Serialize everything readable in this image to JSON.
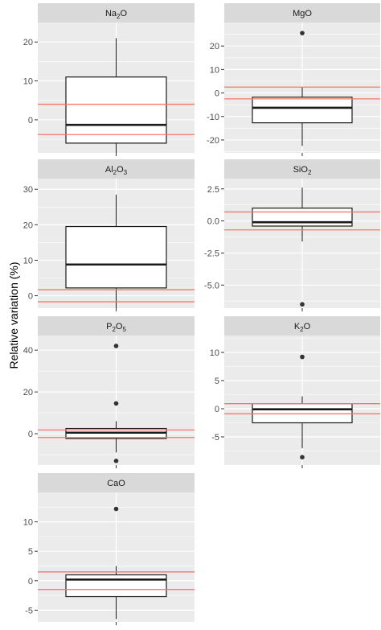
{
  "figure": {
    "ylabel": "Relative variation (%)"
  },
  "colors": {
    "panel_bg": "#ebebeb",
    "strip_bg": "#d9d9d9",
    "grid": "#ffffff",
    "reference_line": "#f8766d",
    "box_fill": "#ffffff",
    "box_stroke": "#1a1a1a",
    "outlier": "#333333"
  },
  "chart_data": [
    {
      "type": "box",
      "strip": "Na2O",
      "strip_parts": [
        {
          "t": "Na"
        },
        {
          "t": "2",
          "sub": true
        },
        {
          "t": "O"
        }
      ],
      "ylim": [
        -8.5,
        25
      ],
      "yticks": [
        0,
        10,
        20
      ],
      "ytick_labels": [
        "0",
        "10",
        "20"
      ],
      "box": {
        "whisker_low": -9.5,
        "q1": -6,
        "median": -1.3,
        "q3": 11,
        "whisker_high": 21
      },
      "outliers": [],
      "reference_lines": [
        4,
        -3.8
      ]
    },
    {
      "type": "box",
      "strip": "MgO",
      "strip_parts": [
        {
          "t": "MgO"
        }
      ],
      "ylim": [
        -25.5,
        30
      ],
      "yticks": [
        -20,
        -10,
        0,
        10,
        20
      ],
      "ytick_labels": [
        "-20",
        "-10",
        "0",
        "10",
        "20"
      ],
      "box": {
        "whisker_low": -22.5,
        "q1": -12.7,
        "median": -6.3,
        "q3": -1.8,
        "whisker_high": 2.5
      },
      "outliers": [
        25.5
      ],
      "reference_lines": [
        2.5,
        -2.5
      ]
    },
    {
      "type": "box",
      "strip": "Al2O3",
      "strip_parts": [
        {
          "t": "Al"
        },
        {
          "t": "2",
          "sub": true
        },
        {
          "t": "O"
        },
        {
          "t": "3",
          "sub": true
        }
      ],
      "ylim": [
        -3.5,
        33
      ],
      "yticks": [
        0,
        10,
        20,
        30
      ],
      "ytick_labels": [
        "0",
        "10",
        "20",
        "30"
      ],
      "box": {
        "whisker_low": -3.5,
        "q1": 2.2,
        "median": 8.8,
        "q3": 19.5,
        "whisker_high": 28.5
      },
      "outliers": [],
      "reference_lines": [
        1.7,
        -1.7
      ]
    },
    {
      "type": "box",
      "strip": "SiO2",
      "strip_parts": [
        {
          "t": "SiO"
        },
        {
          "t": "2",
          "sub": true
        }
      ],
      "ylim": [
        -6.8,
        3.3
      ],
      "yticks": [
        -5,
        -2.5,
        0,
        2.5
      ],
      "ytick_labels": [
        "-5.0",
        "-2.5",
        "0.0",
        "2.5"
      ],
      "box": {
        "whisker_low": -1.6,
        "q1": -0.4,
        "median": -0.1,
        "q3": 1.0,
        "whisker_high": 2.6
      },
      "outliers": [
        -6.5
      ],
      "reference_lines": [
        0.7,
        -0.7
      ]
    },
    {
      "type": "box",
      "strip": "P2O5",
      "strip_parts": [
        {
          "t": "P"
        },
        {
          "t": "2",
          "sub": true
        },
        {
          "t": "O"
        },
        {
          "t": "5",
          "sub": true
        }
      ],
      "ylim": [
        -15,
        47
      ],
      "yticks": [
        0,
        20,
        40
      ],
      "ytick_labels": [
        "0",
        "20",
        "40"
      ],
      "box": {
        "whisker_low": -9,
        "q1": -2.3,
        "median": 0.5,
        "q3": 2.5,
        "whisker_high": 6
      },
      "outliers": [
        42,
        14.5,
        -13
      ],
      "reference_lines": [
        1.8,
        -1.8
      ]
    },
    {
      "type": "box",
      "strip": "K2O",
      "strip_parts": [
        {
          "t": "K"
        },
        {
          "t": "2",
          "sub": true
        },
        {
          "t": "O"
        }
      ],
      "ylim": [
        -10,
        13
      ],
      "yticks": [
        -5,
        0,
        5,
        10
      ],
      "ytick_labels": [
        "-5",
        "0",
        "5",
        "10"
      ],
      "box": {
        "whisker_low": -7,
        "q1": -2.5,
        "median": -0.1,
        "q3": 0.9,
        "whisker_high": 2.2
      },
      "outliers": [
        9.2,
        -8.6
      ],
      "reference_lines": [
        0.9,
        -0.9
      ]
    },
    {
      "type": "box",
      "strip": "CaO",
      "strip_parts": [
        {
          "t": "CaO"
        }
      ],
      "ylim": [
        -7,
        15
      ],
      "yticks": [
        -5,
        0,
        5,
        10
      ],
      "ytick_labels": [
        "-5",
        "0",
        "5",
        "10"
      ],
      "box": {
        "whisker_low": -6.5,
        "q1": -2.7,
        "median": 0.2,
        "q3": 1.0,
        "whisker_high": 2.5
      },
      "outliers": [
        12.2
      ],
      "reference_lines": [
        1.5,
        -1.5
      ]
    }
  ]
}
